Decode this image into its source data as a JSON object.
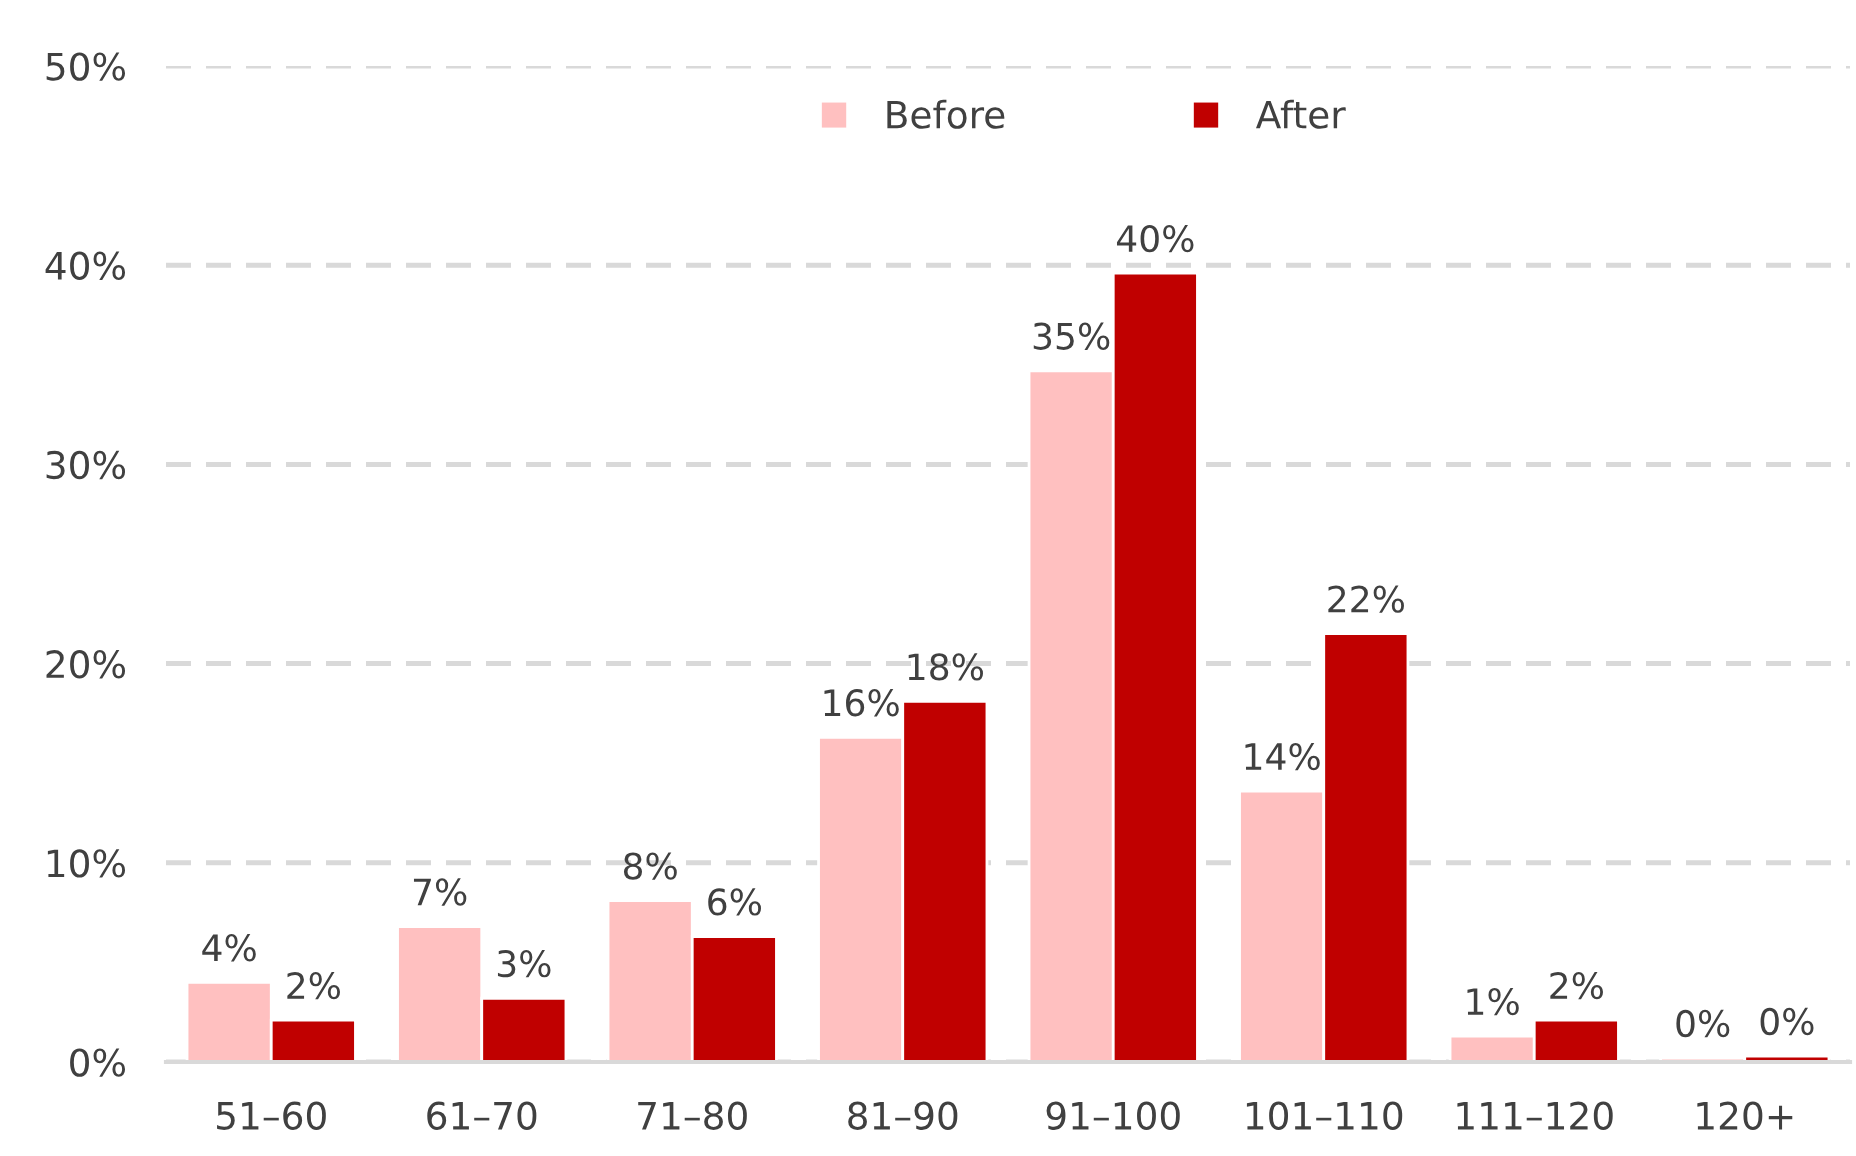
{
  "chart_data": {
    "type": "bar",
    "categories": [
      "51–60",
      "61–70",
      "71–80",
      "81–90",
      "91–100",
      "101–110",
      "111–120",
      "120+"
    ],
    "series": [
      {
        "name": "Before",
        "color": "#ffc0c0",
        "values": [
          4.0,
          6.8,
          8.1,
          16.3,
          34.7,
          13.6,
          1.3,
          0.2
        ],
        "value_labels": [
          "4%",
          "7%",
          "8%",
          "16%",
          "35%",
          "14%",
          "1%",
          "0%"
        ]
      },
      {
        "name": "After",
        "color": "#c00000",
        "values": [
          2.1,
          3.2,
          6.3,
          18.1,
          39.6,
          21.5,
          2.1,
          0.3
        ],
        "value_labels": [
          "2%",
          "3%",
          "6%",
          "18%",
          "40%",
          "22%",
          "2%",
          "0%"
        ]
      }
    ],
    "ylim": [
      0,
      50
    ],
    "yticks": [
      {
        "value": 0,
        "label": "0%"
      },
      {
        "value": 10,
        "label": "10%"
      },
      {
        "value": 20,
        "label": "20%"
      },
      {
        "value": 30,
        "label": "30%"
      },
      {
        "value": 40,
        "label": "40%"
      },
      {
        "value": 50,
        "label": "50%"
      }
    ],
    "grid": "y",
    "legend": "top"
  }
}
